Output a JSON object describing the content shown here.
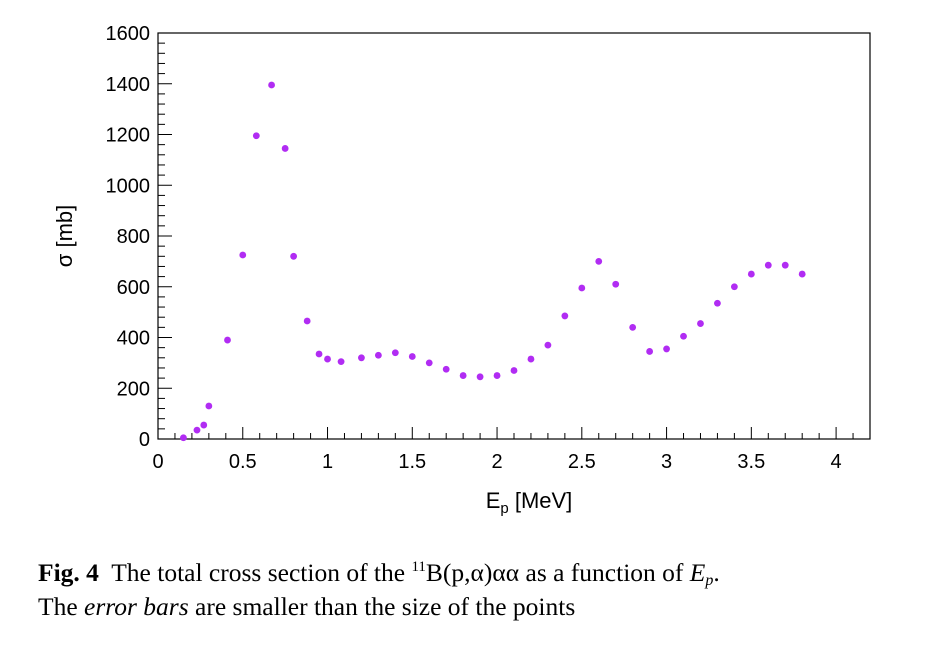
{
  "chart_data": {
    "type": "scatter",
    "xlabel_main": "E",
    "xlabel_sub": "p",
    "xlabel_unit": " [MeV]",
    "ylabel": "σ [mb]",
    "xlim": [
      0,
      4.2
    ],
    "ylim": [
      0,
      1600
    ],
    "xticks": [
      0,
      0.5,
      1,
      1.5,
      2,
      2.5,
      3,
      3.5,
      4
    ],
    "xtick_labels": [
      "0",
      "0.5",
      "1",
      "1.5",
      "2",
      "2.5",
      "3",
      "3.5",
      "4"
    ],
    "yticks": [
      0,
      200,
      400,
      600,
      800,
      1000,
      1200,
      1400,
      1600
    ],
    "ytick_labels": [
      "0",
      "200",
      "400",
      "600",
      "800",
      "1000",
      "1200",
      "1400",
      "1600"
    ],
    "grid": false,
    "marker_color": "#b12cf3",
    "series": [
      {
        "x": [
          0.15,
          0.23,
          0.27,
          0.3,
          0.41,
          0.5,
          0.58,
          0.67,
          0.75,
          0.8,
          0.88,
          0.95,
          1.0,
          1.08,
          1.2,
          1.3,
          1.4,
          1.5,
          1.6,
          1.7,
          1.8,
          1.9,
          2.0,
          2.1,
          2.2,
          2.3,
          2.4,
          2.5,
          2.6,
          2.7,
          2.8,
          2.9,
          3.0,
          3.1,
          3.2,
          3.3,
          3.4,
          3.5,
          3.6,
          3.7,
          3.8
        ],
        "y": [
          5,
          35,
          55,
          130,
          390,
          725,
          1195,
          1395,
          1145,
          720,
          465,
          335,
          315,
          305,
          320,
          330,
          340,
          325,
          300,
          275,
          250,
          245,
          250,
          270,
          315,
          370,
          485,
          595,
          700,
          610,
          440,
          345,
          355,
          405,
          455,
          535,
          600,
          650,
          685,
          685,
          650
        ]
      }
    ]
  },
  "caption": {
    "label": "Fig. 4",
    "text1": "  The total cross section of the ",
    "mass_number": "11",
    "reaction": "B(p,α)αα",
    "text2": " as a function of ",
    "var_main": "E",
    "var_sub": "p",
    "text3": ".",
    "text4": "The ",
    "em_text": "error bars",
    "text5": " are smaller than the size of the points"
  }
}
